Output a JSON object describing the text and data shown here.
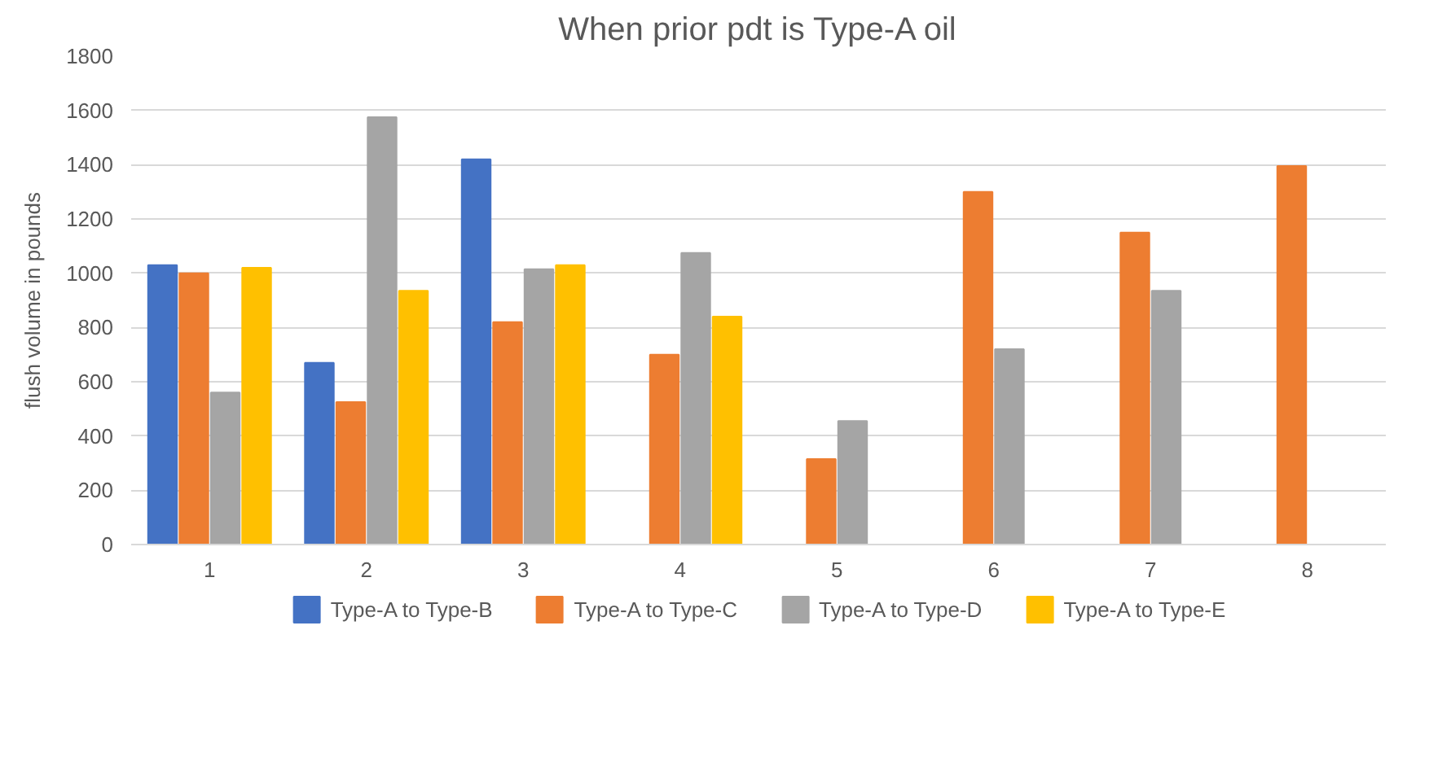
{
  "chart_data": {
    "type": "bar",
    "title": "When prior pdt is Type-A oil",
    "ylabel": "flush volume in pounds",
    "categories": [
      "1",
      "2",
      "3",
      "4",
      "5",
      "6",
      "7",
      "8"
    ],
    "series": [
      {
        "name": "Type-A to Type-B",
        "color": "#4472c4",
        "values": [
          1030,
          670,
          1420,
          null,
          null,
          null,
          null,
          null
        ]
      },
      {
        "name": "Type-A to Type-C",
        "color": "#ed7d31",
        "values": [
          1000,
          525,
          820,
          700,
          315,
          1300,
          1150,
          1395
        ]
      },
      {
        "name": "Type-A to Type-D",
        "color": "#a5a5a5",
        "values": [
          560,
          1575,
          1015,
          1075,
          455,
          720,
          935,
          null
        ]
      },
      {
        "name": "Type-A to Type-E",
        "color": "#ffc000",
        "values": [
          1020,
          935,
          1030,
          840,
          null,
          null,
          null,
          null
        ]
      }
    ],
    "ylim": [
      0,
      1800
    ],
    "yticks": [
      0,
      200,
      400,
      600,
      800,
      1000,
      1200,
      1400,
      1600,
      1800
    ],
    "grid": "y",
    "legend": "bottom"
  }
}
